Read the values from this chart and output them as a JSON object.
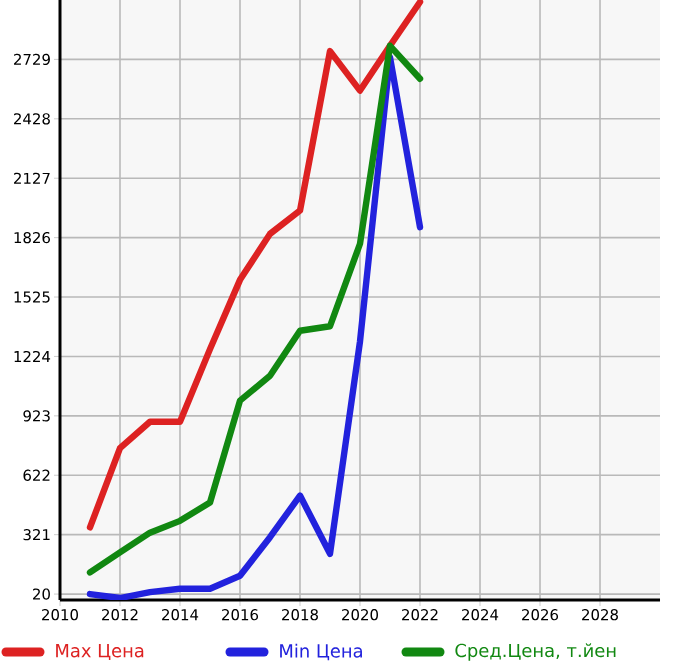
{
  "chart_data": {
    "type": "line",
    "x": [
      2011,
      2012,
      2013,
      2014,
      2015,
      2016,
      2017,
      2018,
      2019,
      2020,
      2021,
      2022
    ],
    "series": [
      {
        "name": "Max Цена",
        "color": "#dd2222",
        "values": [
          358,
          759,
          893,
          893,
          1261,
          1612,
          1845,
          1963,
          2771,
          2571,
          2798,
          3020
        ]
      },
      {
        "name": "Min Цена",
        "color": "#2222dd",
        "values": [
          20,
          0,
          30,
          47,
          47,
          113,
          308,
          519,
          224,
          1300,
          2740,
          1879
        ]
      },
      {
        "name": "Сред.Цена, т.йен",
        "color": "#118811",
        "values": [
          130,
          231,
          331,
          391,
          484,
          1000,
          1126,
          1354,
          1377,
          1795,
          2798,
          2631
        ]
      }
    ],
    "xlim": [
      2010,
      2030
    ],
    "xticks": [
      2010,
      2012,
      2014,
      2016,
      2018,
      2020,
      2022,
      2024,
      2026,
      2028
    ],
    "ylim": [
      -10,
      3030
    ],
    "yticks": [
      20,
      321,
      622,
      923,
      1224,
      1525,
      1826,
      2127,
      2428,
      2729
    ],
    "grid": true,
    "legend": "bottom",
    "marker": "none",
    "line_style": "solid"
  }
}
